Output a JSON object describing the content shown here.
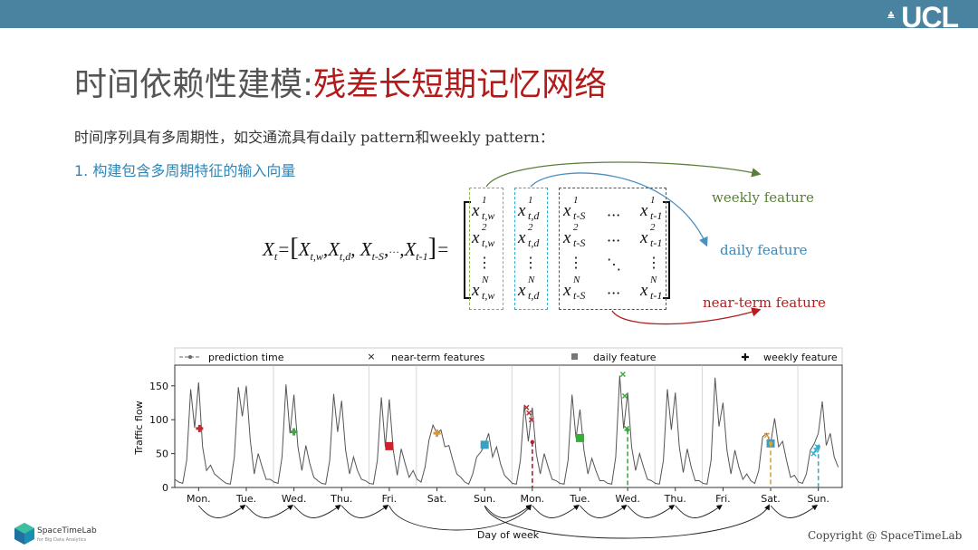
{
  "header": {
    "logo_text": "UCL",
    "bar_color": "#4a83a0"
  },
  "title": {
    "part1": "时间依赖性建模:",
    "part2": "残差长短期记忆网络",
    "color1": "#555555",
    "color2": "#b31b1b"
  },
  "intro": "时间序列具有多周期性，如交通流具有daily pattern和weekly pattern：",
  "step1": "1. 构建包含多周期特征的输入向量",
  "equation": {
    "lhs": "X",
    "lhs_sub": "t",
    "rhs_terms": [
      {
        "base": "X",
        "sub": "t,w"
      },
      {
        "base": "X",
        "sub": "t,d"
      },
      {
        "base": "X",
        "sub": "t-S"
      },
      {
        "base": "X",
        "sub": "t-1"
      }
    ],
    "ellipsis": "···",
    "matrix_columns": {
      "weekly": [
        {
          "sup": "1",
          "sub": "t,w"
        },
        {
          "sup": "2",
          "sub": "t,w"
        },
        {
          "sup": "N",
          "sub": "t,w"
        }
      ],
      "daily": [
        {
          "sup": "1",
          "sub": "t,d"
        },
        {
          "sup": "2",
          "sub": "t,d"
        },
        {
          "sup": "N",
          "sub": "t,d"
        }
      ],
      "near_first": [
        {
          "sup": "1",
          "sub": "t-S"
        },
        {
          "sup": "2",
          "sub": "t-S"
        },
        {
          "sup": "N",
          "sub": "t-S"
        }
      ],
      "near_last": [
        {
          "sup": "1",
          "sub": "t-1"
        },
        {
          "sup": "2",
          "sub": "t-1"
        },
        {
          "sup": "N",
          "sub": "t-1"
        }
      ]
    },
    "cell_base": "x"
  },
  "feature_labels": {
    "weekly": {
      "text": "weekly feature",
      "color": "#5b7f3a"
    },
    "daily": {
      "text": "daily feature",
      "color": "#3a86b8"
    },
    "near_term": {
      "text": "near-term feature",
      "color": "#b02020"
    }
  },
  "box_colors": {
    "weekly": "#8ab04a",
    "daily": "#2bb0d0",
    "near_term": "#c02030"
  },
  "chart_data": {
    "type": "line",
    "xlabel": "Day of week",
    "ylabel": "Traffic flow",
    "ylim": [
      0,
      175
    ],
    "xlim": [
      0,
      14
    ],
    "yticks": [
      0,
      50,
      100,
      150
    ],
    "x_tick_labels": [
      "Mon.",
      "Tue.",
      "Wed.",
      "Thu.",
      "Fri.",
      "Sat.",
      "Sun.",
      "Mon.",
      "Tue.",
      "Wed.",
      "Thu.",
      "Fri.",
      "Sat.",
      "Sun."
    ],
    "samples_per_day": 12,
    "grid": false,
    "legend": {
      "placement": "top",
      "entries": [
        "prediction time",
        "near-term features",
        "daily feature",
        "weekly feature"
      ]
    },
    "series": [
      {
        "color": "#555555",
        "values": [
          12,
          8,
          6,
          40,
          145,
          88,
          155,
          60,
          25,
          33,
          20,
          15,
          10,
          6,
          5,
          45,
          148,
          105,
          150,
          70,
          20,
          50,
          30,
          12,
          12,
          8,
          6,
          45,
          152,
          80,
          137,
          60,
          25,
          62,
          35,
          15,
          10,
          6,
          5,
          40,
          138,
          82,
          128,
          55,
          20,
          45,
          25,
          12,
          10,
          6,
          5,
          40,
          133,
          60,
          130,
          55,
          18,
          57,
          35,
          15,
          25,
          12,
          8,
          30,
          70,
          92,
          80,
          85,
          60,
          62,
          40,
          20,
          15,
          8,
          5,
          20,
          45,
          52,
          62,
          80,
          45,
          60,
          35,
          18,
          12,
          6,
          5,
          40,
          122,
          68,
          118,
          50,
          20,
          50,
          30,
          12,
          10,
          6,
          5,
          40,
          137,
          73,
          115,
          55,
          20,
          43,
          25,
          10,
          10,
          6,
          5,
          45,
          165,
          87,
          140,
          60,
          25,
          50,
          30,
          12,
          10,
          6,
          5,
          40,
          145,
          85,
          140,
          60,
          22,
          57,
          30,
          10,
          10,
          6,
          5,
          40,
          162,
          90,
          125,
          55,
          20,
          55,
          30,
          12,
          20,
          10,
          6,
          25,
          75,
          80,
          65,
          102,
          60,
          68,
          40,
          15,
          18,
          8,
          6,
          20,
          55,
          65,
          80,
          127,
          62,
          80,
          45,
          30
        ]
      }
    ],
    "markers": [
      {
        "kind": "weekly",
        "x": 0.52,
        "y": 87,
        "color": "#d0202a"
      },
      {
        "kind": "weekly",
        "x": 2.5,
        "y": 82,
        "color": "#3aaa3a"
      },
      {
        "kind": "daily",
        "x": 4.5,
        "y": 61,
        "color": "#d0202a"
      },
      {
        "kind": "weekly",
        "x": 5.5,
        "y": 80,
        "color": "#e0982a"
      },
      {
        "kind": "daily",
        "x": 6.5,
        "y": 63,
        "color": "#3a9fc0"
      },
      {
        "kind": "near",
        "x": 7.38,
        "y": 118,
        "color": "#b0303a"
      },
      {
        "kind": "near",
        "x": 7.43,
        "y": 110,
        "color": "#b0303a"
      },
      {
        "kind": "near",
        "x": 7.48,
        "y": 100,
        "color": "#b0303a"
      },
      {
        "kind": "prediction",
        "x": 7.5,
        "y": 67,
        "color": "#b0202a"
      },
      {
        "kind": "daily",
        "x": 8.5,
        "y": 73,
        "color": "#3aaa3a"
      },
      {
        "kind": "near",
        "x": 9.4,
        "y": 167,
        "color": "#3aaa3a"
      },
      {
        "kind": "near",
        "x": 9.44,
        "y": 135,
        "color": "#3aaa3a"
      },
      {
        "kind": "near",
        "x": 9.48,
        "y": 87,
        "color": "#3aaa3a"
      },
      {
        "kind": "prediction",
        "x": 9.5,
        "y": 85,
        "color": "#3aaa3a"
      },
      {
        "kind": "near",
        "x": 12.42,
        "y": 77,
        "color": "#e0982a"
      },
      {
        "kind": "daily",
        "x": 12.5,
        "y": 65,
        "color": "#3a9fc0"
      },
      {
        "kind": "prediction",
        "x": 12.5,
        "y": 65,
        "color": "#e0a030"
      },
      {
        "kind": "near",
        "x": 13.4,
        "y": 50,
        "color": "#30b0d0"
      },
      {
        "kind": "near",
        "x": 13.45,
        "y": 55,
        "color": "#30b0d0"
      },
      {
        "kind": "near",
        "x": 13.48,
        "y": 60,
        "color": "#30b0d0"
      },
      {
        "kind": "prediction",
        "x": 13.5,
        "y": 60,
        "color": "#30b0d0"
      }
    ]
  },
  "footer": {
    "copyright": "Copyright @ SpaceTimeLab",
    "lab_name": "SpaceTimeLab",
    "lab_sub": "for Big Data Analytics"
  }
}
